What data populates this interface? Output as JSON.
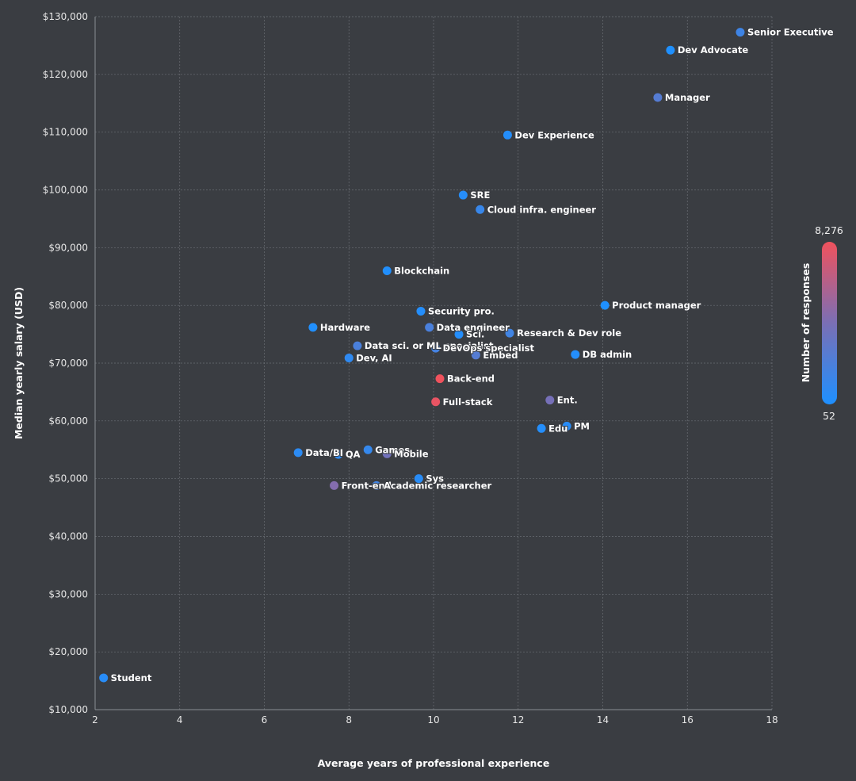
{
  "chart_data": {
    "type": "scatter",
    "title": "",
    "xlabel": "Average years of professional experience",
    "ylabel": "Median yearly salary (USD)",
    "xlim": [
      2,
      18
    ],
    "ylim": [
      10000,
      130000
    ],
    "x_ticks": [
      "2",
      "4",
      "6",
      "8",
      "10",
      "12",
      "14",
      "16",
      "18"
    ],
    "y_ticks": [
      "$10,000",
      "$20,000",
      "$30,000",
      "$40,000",
      "$50,000",
      "$60,000",
      "$70,000",
      "$80,000",
      "$90,000",
      "$100,000",
      "$110,000",
      "$120,000",
      "$130,000"
    ],
    "grid": true,
    "color_scale": {
      "title": "Number of responses",
      "min": 52,
      "max": 8276,
      "min_label": "52",
      "max_label": "8,276",
      "min_color": "#1e90ff",
      "max_color": "#f0525d",
      "placement": "right"
    },
    "points": [
      {
        "label": "Senior Executive",
        "x": 17.25,
        "y": 127300,
        "responses": 1500
      },
      {
        "label": "Dev Advocate",
        "x": 15.6,
        "y": 124200,
        "responses": 100
      },
      {
        "label": "Manager",
        "x": 15.3,
        "y": 116000,
        "responses": 2500
      },
      {
        "label": "Dev Experience",
        "x": 11.75,
        "y": 109500,
        "responses": 300
      },
      {
        "label": "SRE",
        "x": 10.7,
        "y": 99100,
        "responses": 400
      },
      {
        "label": "Cloud infra. engineer",
        "x": 11.1,
        "y": 96600,
        "responses": 1200
      },
      {
        "label": "Blockchain",
        "x": 8.9,
        "y": 86000,
        "responses": 200
      },
      {
        "label": "Product manager",
        "x": 14.05,
        "y": 80000,
        "responses": 100
      },
      {
        "label": "Security pro.",
        "x": 9.7,
        "y": 79000,
        "responses": 300
      },
      {
        "label": "Hardware",
        "x": 7.15,
        "y": 76200,
        "responses": 200
      },
      {
        "label": "Data engineer",
        "x": 9.9,
        "y": 76200,
        "responses": 2000
      },
      {
        "label": "Sci.",
        "x": 10.6,
        "y": 75000,
        "responses": 300
      },
      {
        "label": "Research & Dev role",
        "x": 11.8,
        "y": 75200,
        "responses": 1600
      },
      {
        "label": "Data sci. or ML specialist",
        "x": 8.2,
        "y": 73000,
        "responses": 2000
      },
      {
        "label": "DevOps specialist",
        "x": 10.05,
        "y": 72600,
        "responses": 1800
      },
      {
        "label": "Embed",
        "x": 11.0,
        "y": 71400,
        "responses": 2500
      },
      {
        "label": "DB admin",
        "x": 13.35,
        "y": 71500,
        "responses": 300
      },
      {
        "label": "Dev, AI",
        "x": 8.0,
        "y": 70900,
        "responses": 800
      },
      {
        "label": "Back-end",
        "x": 10.15,
        "y": 67300,
        "responses": 8276
      },
      {
        "label": "Full-stack",
        "x": 10.05,
        "y": 63300,
        "responses": 8000
      },
      {
        "label": "Ent.",
        "x": 12.75,
        "y": 63600,
        "responses": 4000
      },
      {
        "label": "Edu",
        "x": 12.55,
        "y": 58700,
        "responses": 300
      },
      {
        "label": "PM",
        "x": 13.15,
        "y": 59100,
        "responses": 500
      },
      {
        "label": "Data/BI",
        "x": 6.8,
        "y": 54500,
        "responses": 700
      },
      {
        "label": "QA",
        "x": 7.75,
        "y": 54200,
        "responses": 800
      },
      {
        "label": "Games",
        "x": 8.45,
        "y": 55000,
        "responses": 1100
      },
      {
        "label": "Mobile",
        "x": 8.9,
        "y": 54300,
        "responses": 3800
      },
      {
        "label": "Sys",
        "x": 9.65,
        "y": 50000,
        "responses": 500
      },
      {
        "label": "Front-end",
        "x": 7.65,
        "y": 48800,
        "responses": 4500
      },
      {
        "label": "Academic researcher",
        "x": 8.65,
        "y": 48800,
        "responses": 1600
      },
      {
        "label": "Student",
        "x": 2.2,
        "y": 15500,
        "responses": 500
      }
    ]
  }
}
